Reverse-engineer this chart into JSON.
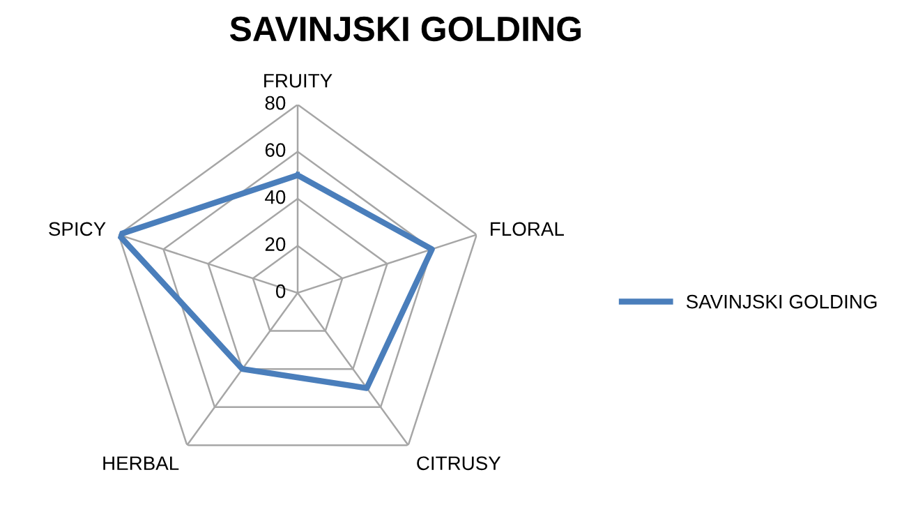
{
  "chart_data": {
    "type": "radar",
    "title": "SAVINJSKI GOLDING",
    "categories": [
      "FRUITY",
      "FLORAL",
      "CITRUSY",
      "HERBAL",
      "SPICY"
    ],
    "series": [
      {
        "name": "SAVINJSKI GOLDING",
        "color": "#4a7ebb",
        "values": [
          50,
          60,
          50,
          40,
          80
        ]
      }
    ],
    "ylim": [
      0,
      80
    ],
    "yticks": [
      0,
      20,
      40,
      60,
      80
    ],
    "legend": "right",
    "grid": true
  }
}
